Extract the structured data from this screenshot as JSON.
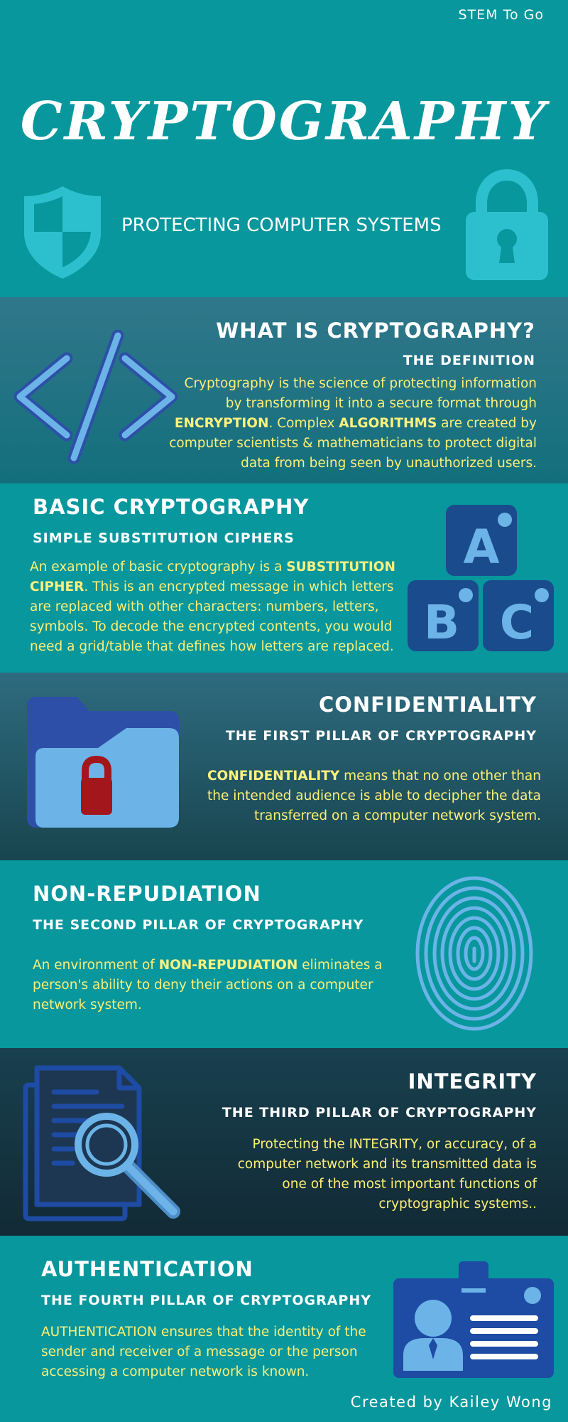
{
  "header": {
    "brand": "STEM To Go",
    "title": "CRYPTOGRAPHY",
    "subtitle": "PROTECTING COMPUTER SYSTEMS",
    "icons": [
      "shield-icon",
      "padlock-icon"
    ]
  },
  "sections": [
    {
      "heading": "WHAT IS CRYPTOGRAPHY?",
      "subheading": "THE DEFINITION",
      "body": [
        "Cryptography is the science of protecting information by transforming it into a secure format through ",
        "ENCRYPTION",
        ". Complex ",
        "ALGORITHMS",
        " are created by computer scientists & mathematicians to protect digital data from being seen by unauthorized users."
      ],
      "icon": "code-icon"
    },
    {
      "heading": "BASIC CRYPTOGRAPHY",
      "subheading": "SIMPLE SUBSTITUTION CIPHERS",
      "body": [
        "An example of basic cryptography is a ",
        "SUBSTITUTION CIPHER",
        ". This is an encrypted message in which letters are replaced with other characters: numbers, letters, symbols.  To decode the encrypted contents, you would need a grid/table that defines how letters are replaced."
      ],
      "icon": "abc-blocks-icon",
      "blocks": [
        "A",
        "B",
        "C"
      ]
    },
    {
      "heading": "CONFIDENTIALITY",
      "subheading": "THE FIRST PILLAR OF CRYPTOGRAPHY",
      "body": [
        "CONFIDENTIALITY",
        " means that no one other than the intended audience is able to decipher the data transferred on a computer network system."
      ],
      "icon": "locked-folder-icon"
    },
    {
      "heading": "NON-REPUDIATION",
      "subheading": "THE SECOND PILLAR OF CRYPTOGRAPHY",
      "body": [
        "An environment of ",
        "NON-REPUDIATION",
        " eliminates a person's ability to deny their actions on a computer network system."
      ],
      "icon": "fingerprint-icon"
    },
    {
      "heading": "INTEGRITY",
      "subheading": "THE THIRD PILLAR OF CRYPTOGRAPHY",
      "body": [
        "Protecting the INTEGRITY, or accuracy, of a computer network and its transmitted data is one of the most important functions of cryptographic systems.."
      ],
      "icon": "document-search-icon"
    },
    {
      "heading": "AUTHENTICATION",
      "subheading": "THE FOURTH PILLAR OF CRYPTOGRAPHY",
      "body": [
        "AUTHENTICATION ensures that the identity of the sender and receiver of a message or the person accessing a computer network is known."
      ],
      "icon": "id-badge-icon"
    }
  ],
  "footer": {
    "credit": "Created by Kailey Wong"
  },
  "colors": {
    "teal": "#07979d",
    "highlight_yellow": "#fcef77",
    "icon_blue": "#6cb4e8",
    "dark_navy": "#1a4b8c",
    "lock_red": "#a3161c"
  }
}
